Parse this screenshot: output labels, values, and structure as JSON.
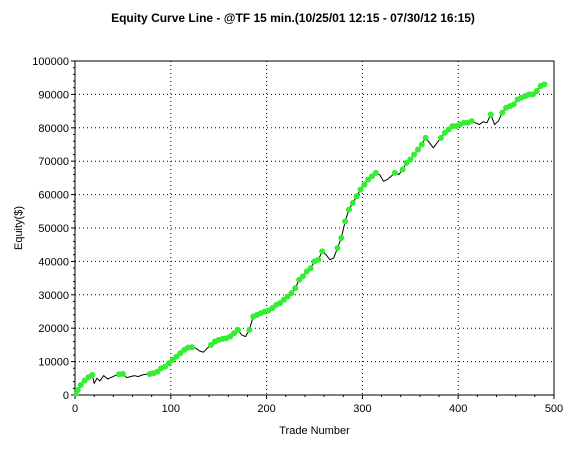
{
  "chart_data": {
    "type": "line",
    "title": "Equity Curve Line - @TF 15 min.(10/25/01 12:15 - 07/30/12 16:15)",
    "xlabel": "Trade Number",
    "ylabel": "Equity($)",
    "xlim": [
      0,
      500
    ],
    "ylim": [
      0,
      100000
    ],
    "x_ticks": [
      0,
      100,
      200,
      300,
      400,
      500
    ],
    "y_ticks": [
      0,
      10000,
      20000,
      30000,
      40000,
      50000,
      60000,
      70000,
      80000,
      90000,
      100000
    ],
    "grid": true,
    "legend": "none",
    "colors": {
      "line": "#000000",
      "marker": "#33ee33"
    },
    "series": [
      {
        "x": [
          0,
          3,
          6,
          10,
          14,
          18,
          20,
          23,
          26,
          30,
          34,
          38,
          42,
          46,
          50,
          54,
          58,
          62,
          66,
          70,
          74,
          78,
          82,
          86,
          90,
          94,
          98,
          102,
          106,
          110,
          114,
          118,
          122,
          126,
          130,
          134,
          138,
          142,
          146,
          150,
          154,
          158,
          162,
          166,
          170,
          174,
          178,
          182,
          186,
          190,
          194,
          198,
          202,
          206,
          210,
          214,
          218,
          222,
          226,
          230,
          234,
          238,
          242,
          246,
          250,
          254,
          258,
          262,
          266,
          270,
          274,
          278,
          282,
          286,
          290,
          294,
          298,
          302,
          306,
          310,
          314,
          318,
          322,
          326,
          330,
          334,
          338,
          342,
          346,
          350,
          354,
          358,
          362,
          366,
          370,
          374,
          378,
          382,
          386,
          390,
          394,
          398,
          402,
          406,
          410,
          414,
          418,
          422,
          426,
          430,
          434,
          438,
          442,
          446,
          450,
          454,
          458,
          462,
          466,
          470,
          474,
          478,
          482,
          486,
          490
        ],
        "y": [
          0,
          1500,
          3000,
          4300,
          5300,
          6000,
          3500,
          5000,
          4200,
          5800,
          4800,
          5300,
          5800,
          6200,
          6300,
          5200,
          5500,
          5800,
          5500,
          6000,
          6200,
          6300,
          6500,
          7000,
          8000,
          8500,
          9500,
          10500,
          11500,
          12500,
          13500,
          14200,
          14300,
          14000,
          13200,
          12800,
          14000,
          15000,
          16000,
          16500,
          16800,
          17000,
          17500,
          18500,
          19500,
          18000,
          17500,
          19500,
          23500,
          24000,
          24500,
          25000,
          25300,
          26000,
          27000,
          27500,
          28500,
          29500,
          30500,
          32000,
          34500,
          35500,
          37000,
          38000,
          40000,
          40500,
          43000,
          42000,
          40500,
          41000,
          44000,
          47000,
          52000,
          55500,
          57500,
          59500,
          61500,
          63000,
          64500,
          65500,
          66500,
          66000,
          64000,
          64500,
          65500,
          66500,
          66000,
          67500,
          69500,
          70500,
          72000,
          73500,
          75000,
          77000,
          75500,
          74000,
          75500,
          77000,
          78500,
          79500,
          80500,
          80500,
          81000,
          81500,
          81500,
          82000,
          81500,
          81000,
          81800,
          81500,
          84000,
          81000,
          82000,
          84500,
          86000,
          86500,
          87000,
          88500,
          89000,
          89500,
          90000,
          90000,
          91000,
          92500,
          93000
        ]
      }
    ]
  }
}
